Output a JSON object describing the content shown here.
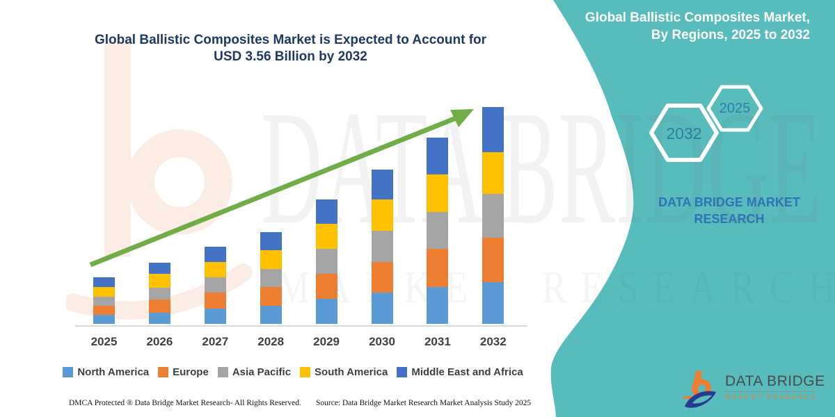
{
  "colors": {
    "teal": "#58BCBD",
    "navy": "#1F3864",
    "green": "#70AD47",
    "axis": "#D9D9D9",
    "label_gray": "#404040",
    "panel_blue": "#2E74B5",
    "hex_blue": "#2E7CA6",
    "logo_orange": "#ED7D31",
    "logo_navy": "#283A8F",
    "logo_text": "#4A4A4A"
  },
  "header": {
    "title_line1": "Global Ballistic Composites Market is Expected to Account for",
    "title_line2": "USD 3.56 Billion by 2032"
  },
  "panel": {
    "title_line1": "Global Ballistic Composites Market,",
    "title_line2": "By Regions, 2025 to 2032",
    "hexagons": [
      {
        "label": "2032"
      },
      {
        "label": "2025"
      }
    ],
    "brand_line1": "DATA BRIDGE MARKET",
    "brand_line2": "RESEARCH",
    "logo_name": "DATA BRIDGE",
    "logo_sub": "MARKET RESEARCH"
  },
  "watermarks": {
    "big_text": "DATA BRIDGE",
    "row_text": "MARKET RESEARCH"
  },
  "footer": {
    "dmca": "DMCA Protected ® Data Bridge Market Research-  All Rights Reserved.",
    "source": "Source: Data Bridge Market Research  Market Analysis Study 2025"
  },
  "chart_data": {
    "type": "bar",
    "stacked": true,
    "title": "Global Ballistic Composites Market is Expected to Account for USD 3.56 Billion by 2032",
    "unit": "USD Billion",
    "categories": [
      "2025",
      "2026",
      "2027",
      "2028",
      "2029",
      "2030",
      "2031",
      "2032"
    ],
    "series": [
      {
        "name": "North America",
        "color": "#5B9BD5",
        "values": [
          0.15,
          0.18,
          0.25,
          0.3,
          0.41,
          0.51,
          0.61,
          0.68
        ]
      },
      {
        "name": "Europe",
        "color": "#ED7D31",
        "values": [
          0.15,
          0.22,
          0.26,
          0.3,
          0.41,
          0.51,
          0.62,
          0.74
        ]
      },
      {
        "name": "Asia Pacific",
        "color": "#A5A5A5",
        "values": [
          0.15,
          0.19,
          0.25,
          0.3,
          0.41,
          0.51,
          0.61,
          0.72
        ]
      },
      {
        "name": "South America",
        "color": "#FFC000",
        "values": [
          0.16,
          0.23,
          0.26,
          0.31,
          0.41,
          0.51,
          0.61,
          0.68
        ]
      },
      {
        "name": "Middle East and Africa",
        "color": "#4472C4",
        "values": [
          0.16,
          0.19,
          0.25,
          0.3,
          0.4,
          0.5,
          0.61,
          0.74
        ]
      }
    ],
    "totals": [
      0.77,
      1.01,
      1.27,
      1.51,
      2.04,
      2.54,
      3.06,
      3.56
    ],
    "ylim": [
      0,
      3.9
    ],
    "grid": false,
    "legend_position": "bottom",
    "trend_arrow": true
  }
}
